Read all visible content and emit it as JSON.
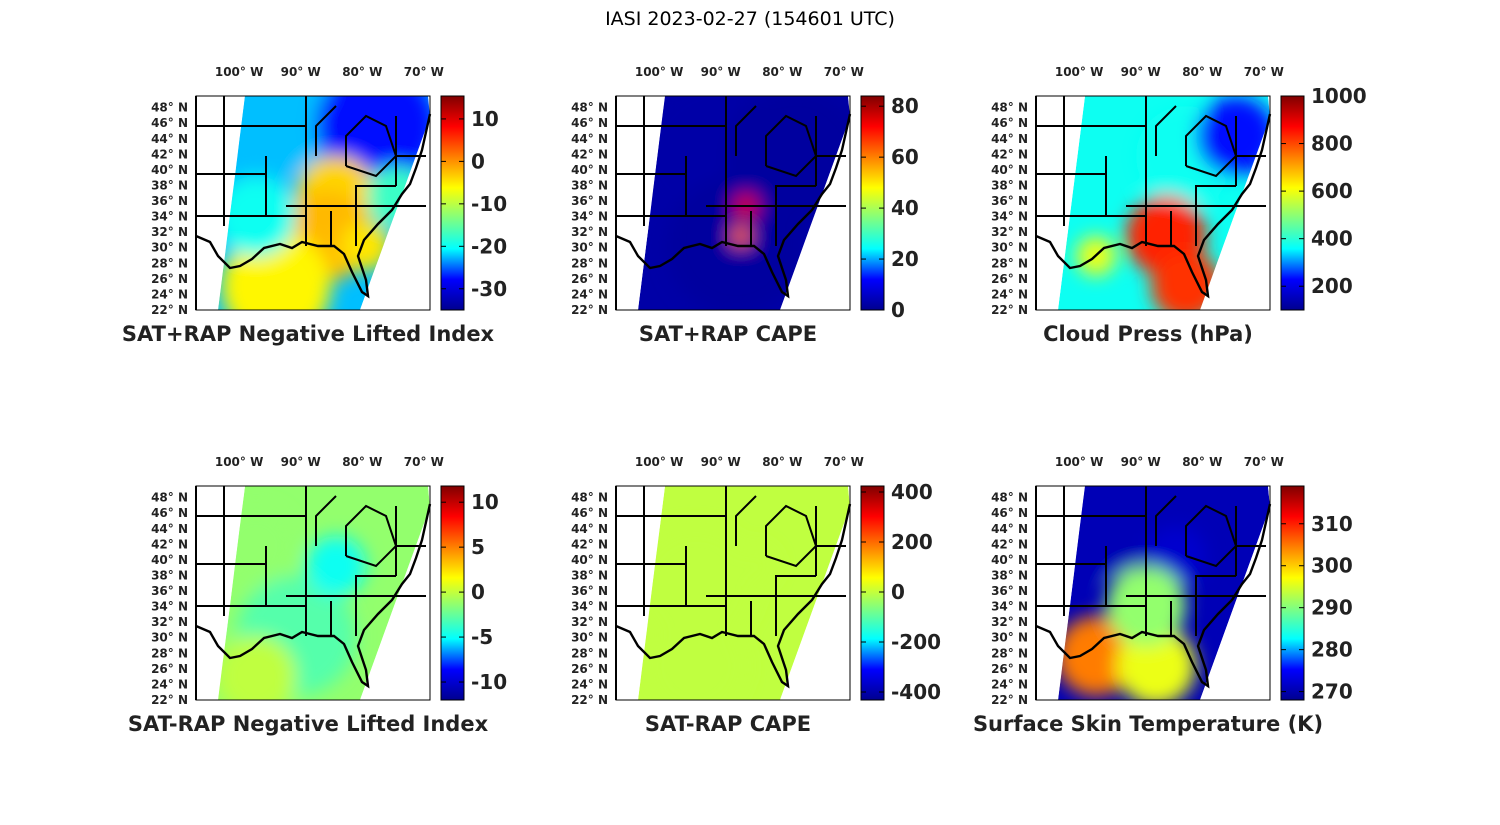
{
  "figure_title": "IASI 2023-02-27 (154601 UTC)",
  "axes": {
    "lon_ticks": [
      "100° W",
      "90° W",
      "80° W",
      "70° W"
    ],
    "lon_values": [
      -100,
      -90,
      -80,
      -70
    ],
    "lon_range": [
      -107,
      -69
    ],
    "lat_ticks": [
      "48° N",
      "46° N",
      "44° N",
      "42° N",
      "40° N",
      "38° N",
      "36° N",
      "34° N",
      "32° N",
      "30° N",
      "28° N",
      "26° N",
      "24° N",
      "22° N"
    ],
    "lat_values": [
      48,
      46,
      44,
      42,
      40,
      38,
      36,
      34,
      32,
      30,
      28,
      26,
      24,
      22
    ],
    "lat_range": [
      22,
      49.5
    ]
  },
  "colormap": "jet",
  "jet_colors": [
    "#00008f",
    "#0000ff",
    "#00ffff",
    "#80ff80",
    "#ffff00",
    "#ff8000",
    "#ff0000",
    "#800000"
  ],
  "panels": [
    {
      "title": "SAT+RAP Negative Lifted Index",
      "clim": [
        -35,
        15.4
      ],
      "ticks": [
        10,
        0,
        -10,
        -20,
        -30
      ]
    },
    {
      "title": "SAT+RAP CAPE",
      "clim": [
        0,
        84
      ],
      "ticks": [
        80,
        60,
        40,
        20,
        0
      ]
    },
    {
      "title": "Cloud Press (hPa)",
      "clim": [
        100,
        1000
      ],
      "ticks": [
        1000,
        800,
        600,
        400,
        200
      ]
    },
    {
      "title": "SAT-RAP Negative Lifted Index",
      "clim": [
        -12,
        11.8
      ],
      "ticks": [
        10,
        5,
        0,
        -5,
        -10
      ]
    },
    {
      "title": "SAT-RAP CAPE",
      "clim": [
        -432,
        424
      ],
      "ticks": [
        400,
        200,
        0,
        -200,
        -400
      ]
    },
    {
      "title": "Surface Skin Temperature (K)",
      "clim": [
        268,
        319
      ],
      "ticks": [
        310,
        300,
        290,
        280,
        270
      ]
    }
  ]
}
